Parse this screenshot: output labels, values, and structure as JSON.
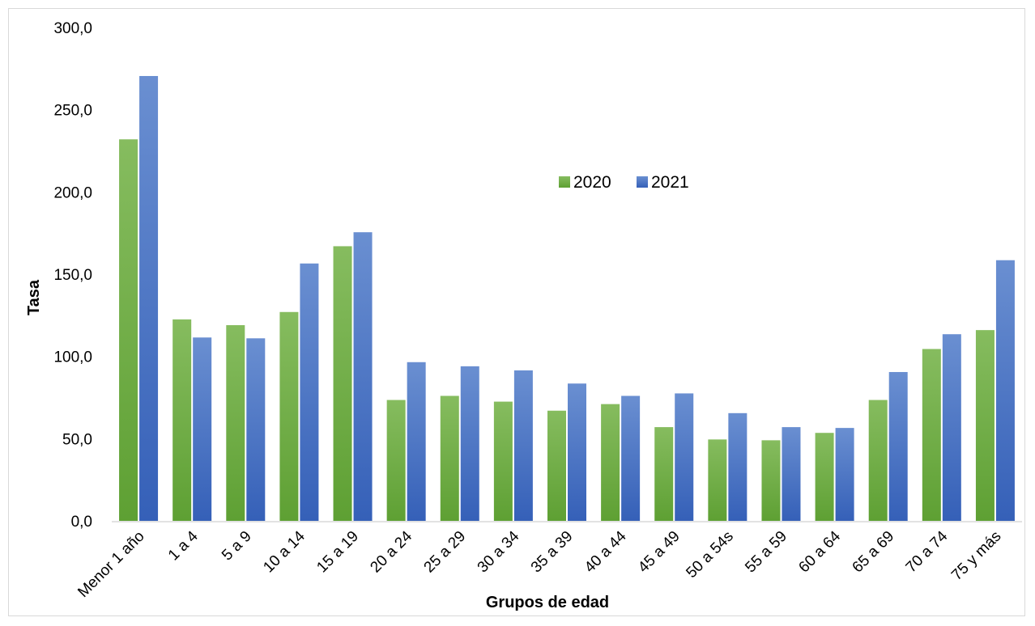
{
  "chart_data": {
    "type": "bar",
    "categories": [
      "Menor 1 año",
      "1 a 4",
      "5 a 9",
      "10 a 14",
      "15 a 19",
      "20 a 24",
      "25 a 29",
      "30 a 34",
      "35 a 39",
      "40 a 44",
      "45 a 49",
      "50 a 54s",
      "55 a 59",
      "60 a 64",
      "65 a 69",
      "70 a 74",
      "75 y más"
    ],
    "series": [
      {
        "name": "2020",
        "color": "#6aab3f",
        "values": [
          232.0,
          122.5,
          119.0,
          127.0,
          167.0,
          73.5,
          76.0,
          72.5,
          67.0,
          71.0,
          57.0,
          49.5,
          49.0,
          53.5,
          73.5,
          104.5,
          116.0
        ]
      },
      {
        "name": "2021",
        "color": "#4472c4",
        "values": [
          270.5,
          111.5,
          111.0,
          156.5,
          175.5,
          96.5,
          94.0,
          91.5,
          83.5,
          76.0,
          77.5,
          65.5,
          57.0,
          56.5,
          90.5,
          113.5,
          158.5
        ]
      }
    ],
    "title": "",
    "xlabel": "Grupos de edad",
    "ylabel": "Tasa",
    "ylim": [
      0,
      300
    ],
    "yticks": [
      "0,0",
      "50,0",
      "100,0",
      "150,0",
      "200,0",
      "250,0",
      "300,0"
    ],
    "grid": false,
    "legend_position": "center-top"
  }
}
